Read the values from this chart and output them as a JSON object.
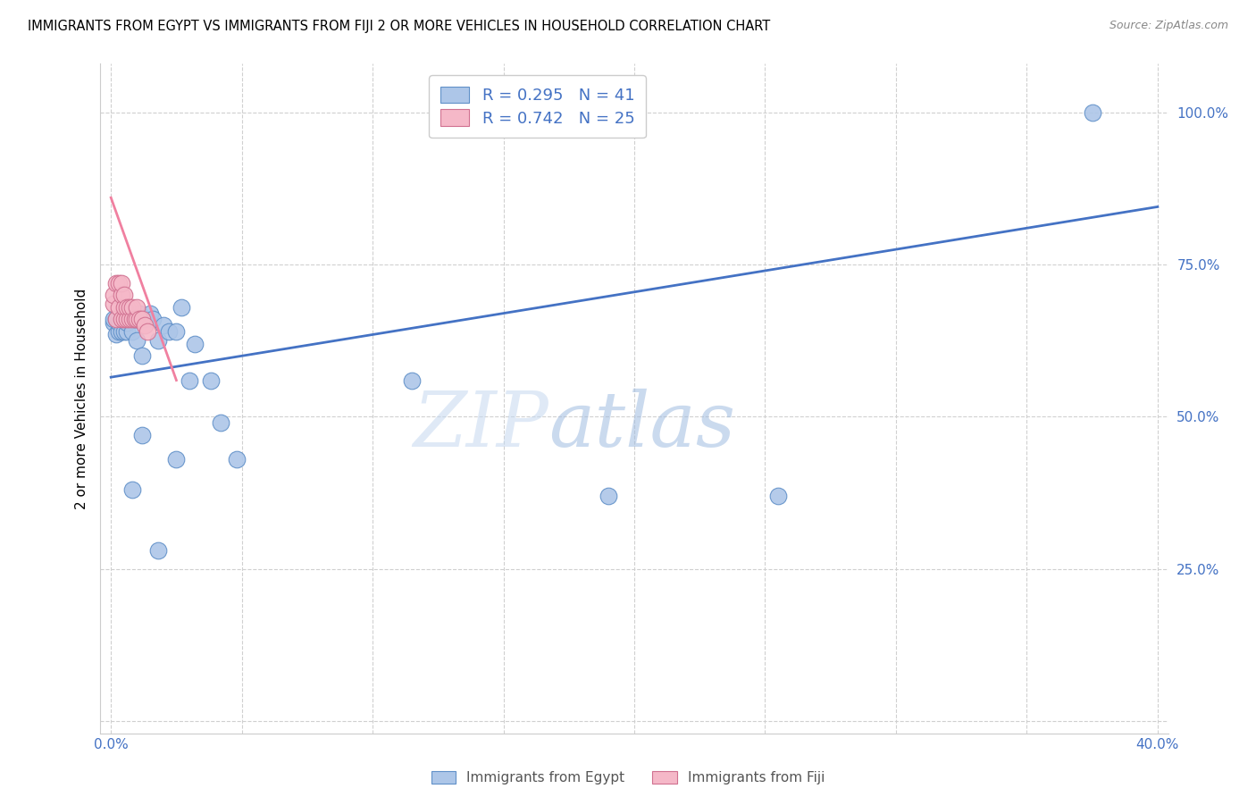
{
  "title": "IMMIGRANTS FROM EGYPT VS IMMIGRANTS FROM FIJI 2 OR MORE VEHICLES IN HOUSEHOLD CORRELATION CHART",
  "source": "Source: ZipAtlas.com",
  "ylabel": "2 or more Vehicles in Household",
  "xlim": [
    -0.004,
    0.404
  ],
  "ylim": [
    -0.02,
    1.08
  ],
  "xticks": [
    0.0,
    0.05,
    0.1,
    0.15,
    0.2,
    0.25,
    0.3,
    0.35,
    0.4
  ],
  "xticklabels": [
    "0.0%",
    "",
    "",
    "",
    "",
    "",
    "",
    "",
    "40.0%"
  ],
  "yticks": [
    0.0,
    0.25,
    0.5,
    0.75,
    1.0
  ],
  "yticklabels": [
    "",
    "25.0%",
    "50.0%",
    "75.0%",
    "100.0%"
  ],
  "legend1_label": "R = 0.295   N = 41",
  "legend2_label": "R = 0.742   N = 25",
  "legend_color1": "#adc6e8",
  "legend_color2": "#f5b8c8",
  "line1_color": "#4472c4",
  "line2_color": "#f080a0",
  "dot1_color": "#adc6e8",
  "dot2_color": "#f5b8c8",
  "dot1_edge": "#6090c8",
  "dot2_edge": "#d07090",
  "watermark_zip": "ZIP",
  "watermark_atlas": "atlas",
  "egypt_x": [
    0.001,
    0.001,
    0.002,
    0.002,
    0.003,
    0.003,
    0.003,
    0.004,
    0.004,
    0.005,
    0.005,
    0.006,
    0.006,
    0.006,
    0.007,
    0.008,
    0.009,
    0.01,
    0.011,
    0.012,
    0.013,
    0.015,
    0.016,
    0.018,
    0.02,
    0.022,
    0.025,
    0.027,
    0.03,
    0.032,
    0.038,
    0.042,
    0.048,
    0.115,
    0.19,
    0.255,
    0.375,
    0.008,
    0.012,
    0.018,
    0.025
  ],
  "egypt_y": [
    0.655,
    0.66,
    0.635,
    0.66,
    0.64,
    0.655,
    0.66,
    0.64,
    0.66,
    0.64,
    0.66,
    0.64,
    0.655,
    0.66,
    0.67,
    0.64,
    0.66,
    0.625,
    0.67,
    0.6,
    0.66,
    0.67,
    0.66,
    0.625,
    0.65,
    0.64,
    0.64,
    0.68,
    0.56,
    0.62,
    0.56,
    0.49,
    0.43,
    0.56,
    0.37,
    0.37,
    1.0,
    0.38,
    0.47,
    0.28,
    0.43
  ],
  "fiji_x": [
    0.001,
    0.001,
    0.002,
    0.002,
    0.003,
    0.003,
    0.004,
    0.004,
    0.004,
    0.005,
    0.005,
    0.005,
    0.006,
    0.006,
    0.007,
    0.007,
    0.008,
    0.008,
    0.009,
    0.01,
    0.01,
    0.011,
    0.012,
    0.013,
    0.014
  ],
  "fiji_y": [
    0.685,
    0.7,
    0.66,
    0.72,
    0.68,
    0.72,
    0.66,
    0.7,
    0.72,
    0.66,
    0.68,
    0.7,
    0.66,
    0.68,
    0.66,
    0.68,
    0.66,
    0.68,
    0.66,
    0.66,
    0.68,
    0.66,
    0.66,
    0.65,
    0.64
  ],
  "fiji_line_x": [
    0.0,
    0.025
  ],
  "fiji_line_y": [
    0.86,
    0.56
  ],
  "egypt_line_x": [
    0.0,
    0.4
  ],
  "egypt_line_y": [
    0.565,
    0.845
  ]
}
